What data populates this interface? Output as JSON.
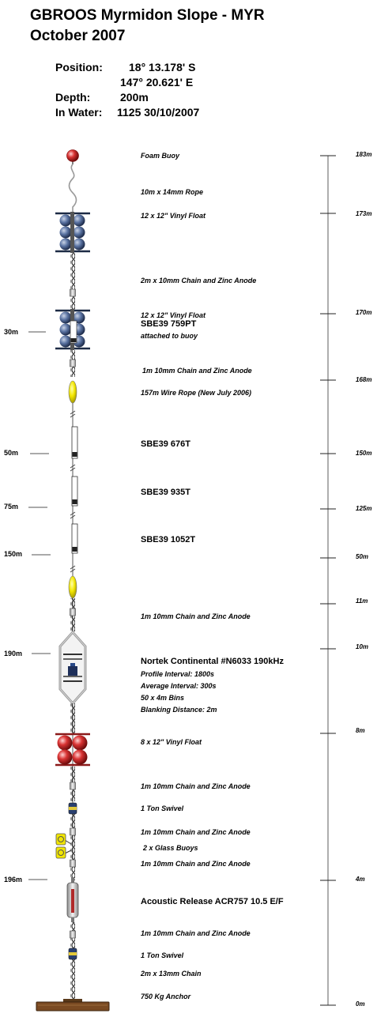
{
  "title": {
    "line1": "GBROOS Myrmidon Slope - MYR",
    "line2": "October 2007"
  },
  "info": {
    "position_label": "Position:",
    "lat": "18° 13.178' S",
    "lon": "147° 20.621' E",
    "depth_label": "Depth:",
    "depth": "200m",
    "inwater_label": "In Water:",
    "inwater": "1125 30/10/2007"
  },
  "components": [
    "Foam Buoy",
    "10m x 14mm Rope",
    "12 x 12\" Vinyl Float",
    "2m x 10mm Chain and Zinc Anode",
    "12 x 12\" Vinyl Float",
    "1m 10mm Chain and Zinc Anode",
    "157m Wire Rope (New July 2006)",
    "1m 10mm Chain and Zinc Anode",
    "8 x 12\" Vinyl Float",
    "1m 10mm Chain and Zinc Anode",
    "1 Ton Swivel",
    "1m 10mm Chain and Zinc Anode",
    "2 x Glass Buoys",
    "1m 10mm Chain and Zinc Anode",
    "1m 10mm Chain and Zinc Anode",
    "1 Ton Swivel",
    "2m x 13mm Chain",
    "750 Kg Anchor"
  ],
  "instruments": [
    {
      "name": "SBE39 759PT",
      "note": "attached to buoy"
    },
    {
      "name": "SBE39 676T"
    },
    {
      "name": "SBE39 935T"
    },
    {
      "name": "SBE39 1052T"
    },
    {
      "name": "Nortek Continental #N6033 190kHz",
      "details": [
        "Profile Interval: 1800s",
        "Average Interval: 300s",
        "50 x 4m Bins",
        "Blanking Distance: 2m"
      ]
    },
    {
      "name": "Acoustic Release ACR757 10.5 E/F"
    }
  ],
  "instrument_depths": [
    "30m",
    "50m",
    "75m",
    "150m",
    "190m",
    "196m"
  ],
  "height_scale": [
    "183m",
    "173m",
    "170m",
    "168m",
    "150m",
    "125m",
    "50m",
    "11m",
    "10m",
    "8m",
    "4m",
    "0m"
  ],
  "colors": {
    "float_blue": "#3f5f8f",
    "float_red": "#cc2a2a",
    "buoy_yellow": "#f2e600",
    "anchor": "#7a4a22"
  }
}
